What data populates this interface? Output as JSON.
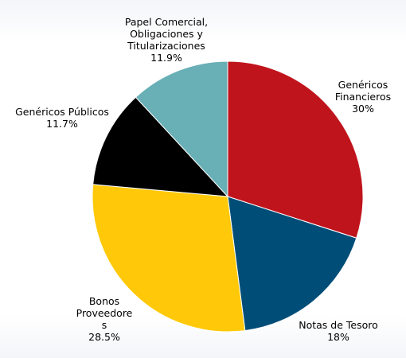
{
  "chart_data": {
    "type": "pie",
    "start_angle_deg": 0,
    "direction": "clockwise",
    "slices": [
      {
        "label": "Genéricos Financieros",
        "label_lines": [
          "Genéricos",
          "Financieros"
        ],
        "value": 30,
        "value_label": "30%",
        "color": "#c0141c"
      },
      {
        "label": "Notas de Tesoro",
        "label_lines": [
          "Notas de Tesoro"
        ],
        "value": 18,
        "value_label": "18%",
        "color": "#004e78"
      },
      {
        "label": "Bonos Proveedores",
        "label_lines": [
          "Bonos",
          "Proveedore",
          "s"
        ],
        "value": 28.5,
        "value_label": "28.5%",
        "color": "#ffc90a"
      },
      {
        "label": "Genéricos Públicos",
        "label_lines": [
          "Genéricos Públicos"
        ],
        "value": 11.7,
        "value_label": "11.7%",
        "color": "#000000"
      },
      {
        "label": "Papel Comercial, Obligaciones y Titularizaciones",
        "label_lines": [
          "Papel Comercial,",
          "Obligaciones y",
          "Titularizaciones"
        ],
        "value": 11.9,
        "value_label": "11.9%",
        "color": "#68afb6"
      }
    ]
  }
}
